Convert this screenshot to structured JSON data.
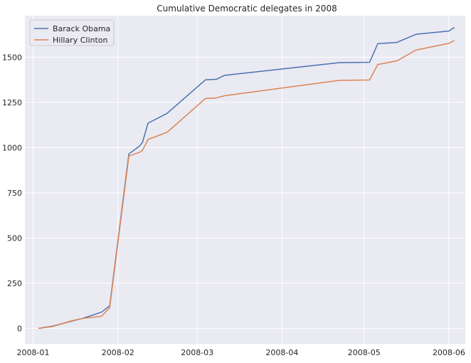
{
  "chart_data": {
    "type": "line",
    "title": "Cumulative Democratic delegates in 2008",
    "xlabel": "",
    "ylabel": "",
    "x_axis_type": "date",
    "xlim": [
      "2007-12-29",
      "2008-06-07"
    ],
    "ylim": [
      -85,
      1730
    ],
    "x_ticks": [
      "2008-01-01",
      "2008-02-01",
      "2008-03-01",
      "2008-04-01",
      "2008-05-01",
      "2008-06-01"
    ],
    "x_tick_labels": [
      "2008-01",
      "2008-02",
      "2008-03",
      "2008-04",
      "2008-05",
      "2008-06"
    ],
    "y_ticks": [
      0,
      250,
      500,
      750,
      1000,
      1250,
      1500
    ],
    "y_tick_labels": [
      "0",
      "250",
      "500",
      "750",
      "1000",
      "1250",
      "1500"
    ],
    "grid": true,
    "background": "#eaeaf2",
    "legend_position": "top-left",
    "series": [
      {
        "name": "Barack Obama",
        "color": "#4c72b0",
        "x": [
          "2008-01-03",
          "2008-01-08",
          "2008-01-15",
          "2008-01-19",
          "2008-01-26",
          "2008-01-29",
          "2008-02-05",
          "2008-02-09",
          "2008-02-10",
          "2008-02-12",
          "2008-02-19",
          "2008-03-04",
          "2008-03-08",
          "2008-03-11",
          "2008-04-22",
          "2008-05-03",
          "2008-05-06",
          "2008-05-13",
          "2008-05-20",
          "2008-06-01",
          "2008-06-03"
        ],
        "y": [
          0,
          12,
          40,
          55,
          90,
          125,
          965,
          1010,
          1030,
          1135,
          1190,
          1375,
          1378,
          1400,
          1470,
          1472,
          1575,
          1582,
          1627,
          1645,
          1665
        ]
      },
      {
        "name": "Hillary Clinton",
        "color": "#dd8452",
        "x": [
          "2008-01-03",
          "2008-01-08",
          "2008-01-15",
          "2008-01-19",
          "2008-01-26",
          "2008-01-29",
          "2008-02-05",
          "2008-02-09",
          "2008-02-10",
          "2008-02-12",
          "2008-02-19",
          "2008-03-04",
          "2008-03-08",
          "2008-03-11",
          "2008-04-22",
          "2008-05-03",
          "2008-05-06",
          "2008-05-13",
          "2008-05-20",
          "2008-06-01",
          "2008-06-03"
        ],
        "y": [
          0,
          10,
          42,
          55,
          67,
          115,
          953,
          975,
          985,
          1045,
          1085,
          1272,
          1275,
          1287,
          1372,
          1374,
          1460,
          1480,
          1540,
          1577,
          1592
        ]
      }
    ]
  }
}
